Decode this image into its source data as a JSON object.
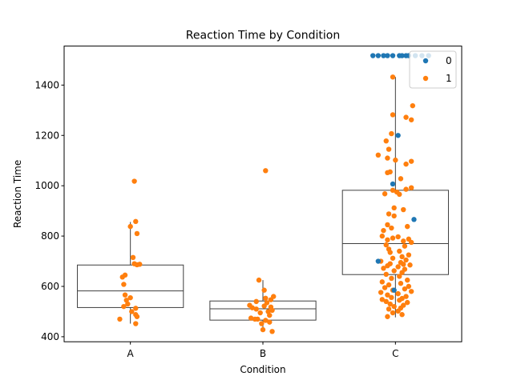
{
  "chart_data": {
    "type": "box_strip",
    "title": "Reaction Time by Condition",
    "xlabel": "Condition",
    "ylabel": "Reaction Time",
    "categories": [
      "A",
      "B",
      "C"
    ],
    "ylim": [
      380,
      1555
    ],
    "yticks": [
      400,
      600,
      800,
      1000,
      1200,
      1400
    ],
    "legend": {
      "placement": "top-right",
      "entries": [
        {
          "label": "0",
          "color": "#1f77b4"
        },
        {
          "label": "1",
          "color": "#ff7f0e"
        }
      ]
    },
    "box_style": {
      "edge_color": "#3f3f3f",
      "fill": "#ffffff"
    },
    "boxes": [
      {
        "category": "A",
        "q1": 516,
        "median": 582,
        "q3": 685,
        "whisker_low": 452,
        "whisker_high": 856
      },
      {
        "category": "B",
        "q1": 466,
        "median": 511,
        "q3": 542,
        "whisker_low": 421,
        "whisker_high": 625
      },
      {
        "category": "C",
        "q1": 647,
        "median": 770,
        "q3": 982,
        "whisker_low": 477,
        "whisker_high": 1432
      }
    ],
    "series": [
      {
        "name": "0",
        "color": "#1f77b4",
        "points": [
          [
            "C",
            -0.17,
            1517
          ],
          [
            "C",
            -0.13,
            1517
          ],
          [
            "C",
            0.05,
            1517
          ],
          [
            "C",
            0.25,
            1517
          ],
          [
            "C",
            -0.06,
            1517
          ],
          [
            "C",
            0.1,
            1517
          ],
          [
            "C",
            0.15,
            1517
          ],
          [
            "C",
            -0.09,
            1517
          ],
          [
            "C",
            0.03,
            1517
          ],
          [
            "C",
            0.2,
            1517
          ],
          [
            "C",
            -0.02,
            1517
          ],
          [
            "C",
            0.08,
            1517
          ],
          [
            "C",
            0.02,
            1200
          ],
          [
            "C",
            -0.02,
            1007
          ],
          [
            "C",
            0.14,
            866
          ],
          [
            "C",
            -0.13,
            700
          ],
          [
            "C",
            -0.01,
            585
          ]
        ]
      },
      {
        "name": "1",
        "color": "#ff7f0e",
        "points": [
          [
            "A",
            0.03,
            1018
          ],
          [
            "A",
            0.04,
            858
          ],
          [
            "A",
            0.0,
            838
          ],
          [
            "A",
            0.05,
            810
          ],
          [
            "A",
            0.02,
            715
          ],
          [
            "A",
            0.03,
            690
          ],
          [
            "A",
            0.07,
            688
          ],
          [
            "A",
            0.05,
            686
          ],
          [
            "A",
            -0.04,
            645
          ],
          [
            "A",
            -0.06,
            637
          ],
          [
            "A",
            -0.05,
            608
          ],
          [
            "A",
            -0.04,
            566
          ],
          [
            "A",
            0.0,
            555
          ],
          [
            "A",
            -0.03,
            545
          ],
          [
            "A",
            -0.02,
            530
          ],
          [
            "A",
            -0.05,
            520
          ],
          [
            "A",
            0.04,
            513
          ],
          [
            "A",
            0.01,
            500
          ],
          [
            "A",
            0.04,
            488
          ],
          [
            "A",
            0.05,
            480
          ],
          [
            "A",
            -0.08,
            470
          ],
          [
            "A",
            0.04,
            452
          ],
          [
            "B",
            0.02,
            1060
          ],
          [
            "B",
            -0.03,
            625
          ],
          [
            "B",
            0.01,
            585
          ],
          [
            "B",
            0.08,
            560
          ],
          [
            "B",
            0.02,
            553
          ],
          [
            "B",
            0.06,
            547
          ],
          [
            "B",
            -0.05,
            540
          ],
          [
            "B",
            0.03,
            535
          ],
          [
            "B",
            -0.1,
            525
          ],
          [
            "B",
            0.01,
            522
          ],
          [
            "B",
            0.06,
            518
          ],
          [
            "B",
            -0.08,
            515
          ],
          [
            "B",
            -0.05,
            510
          ],
          [
            "B",
            0.07,
            505
          ],
          [
            "B",
            0.04,
            500
          ],
          [
            "B",
            -0.02,
            495
          ],
          [
            "B",
            0.05,
            485
          ],
          [
            "B",
            -0.09,
            474
          ],
          [
            "B",
            -0.06,
            470
          ],
          [
            "B",
            0.02,
            465
          ],
          [
            "B",
            0.05,
            458
          ],
          [
            "B",
            -0.01,
            452
          ],
          [
            "B",
            0.0,
            428
          ],
          [
            "B",
            0.07,
            421
          ],
          [
            "B",
            -0.04,
            470
          ],
          [
            "C",
            -0.02,
            1432
          ],
          [
            "C",
            0.13,
            1318
          ],
          [
            "C",
            -0.02,
            1282
          ],
          [
            "C",
            0.08,
            1272
          ],
          [
            "C",
            0.12,
            1262
          ],
          [
            "C",
            -0.03,
            1207
          ],
          [
            "C",
            -0.07,
            1178
          ],
          [
            "C",
            -0.05,
            1145
          ],
          [
            "C",
            -0.13,
            1122
          ],
          [
            "C",
            -0.06,
            1110
          ],
          [
            "C",
            0.0,
            1102
          ],
          [
            "C",
            0.12,
            1097
          ],
          [
            "C",
            0.08,
            1086
          ],
          [
            "C",
            -0.04,
            1055
          ],
          [
            "C",
            -0.06,
            1052
          ],
          [
            "C",
            0.04,
            1028
          ],
          [
            "C",
            0.12,
            992
          ],
          [
            "C",
            0.08,
            986
          ],
          [
            "C",
            -0.02,
            982
          ],
          [
            "C",
            0.01,
            975
          ],
          [
            "C",
            -0.08,
            968
          ],
          [
            "C",
            0.03,
            966
          ],
          [
            "C",
            -0.01,
            912
          ],
          [
            "C",
            0.06,
            905
          ],
          [
            "C",
            -0.05,
            888
          ],
          [
            "C",
            -0.01,
            880
          ],
          [
            "C",
            -0.06,
            845
          ],
          [
            "C",
            0.09,
            838
          ],
          [
            "C",
            -0.03,
            832
          ],
          [
            "C",
            -0.09,
            822
          ],
          [
            "C",
            -0.1,
            800
          ],
          [
            "C",
            0.02,
            797
          ],
          [
            "C",
            -0.02,
            792
          ],
          [
            "C",
            0.1,
            788
          ],
          [
            "C",
            -0.06,
            785
          ],
          [
            "C",
            0.06,
            780
          ],
          [
            "C",
            0.12,
            775
          ],
          [
            "C",
            -0.07,
            765
          ],
          [
            "C",
            0.07,
            760
          ],
          [
            "C",
            -0.05,
            748
          ],
          [
            "C",
            0.03,
            740
          ],
          [
            "C",
            -0.04,
            735
          ],
          [
            "C",
            0.1,
            725
          ],
          [
            "C",
            0.05,
            718
          ],
          [
            "C",
            -0.02,
            712
          ],
          [
            "C",
            0.08,
            705
          ],
          [
            "C",
            -0.11,
            700
          ],
          [
            "C",
            0.04,
            695
          ],
          [
            "C",
            -0.04,
            690
          ],
          [
            "C",
            0.06,
            688
          ],
          [
            "C",
            0.11,
            685
          ],
          [
            "C",
            -0.06,
            682
          ],
          [
            "C",
            0.02,
            678
          ],
          [
            "C",
            -0.09,
            672
          ],
          [
            "C",
            0.07,
            668
          ],
          [
            "C",
            -0.01,
            662
          ],
          [
            "C",
            0.05,
            655
          ],
          [
            "C",
            -0.07,
            648
          ],
          [
            "C",
            0.03,
            640
          ],
          [
            "C",
            -0.03,
            632
          ],
          [
            "C",
            0.09,
            625
          ],
          [
            "C",
            -0.1,
            618
          ],
          [
            "C",
            0.04,
            612
          ],
          [
            "C",
            -0.05,
            606
          ],
          [
            "C",
            0.1,
            600
          ],
          [
            "C",
            -0.08,
            595
          ],
          [
            "C",
            0.07,
            590
          ],
          [
            "C",
            -0.02,
            585
          ],
          [
            "C",
            0.12,
            580
          ],
          [
            "C",
            -0.11,
            576
          ],
          [
            "C",
            0.02,
            571
          ],
          [
            "C",
            -0.06,
            566
          ],
          [
            "C",
            0.08,
            560
          ],
          [
            "C",
            -0.03,
            556
          ],
          [
            "C",
            0.05,
            552
          ],
          [
            "C",
            -0.1,
            548
          ],
          [
            "C",
            0.03,
            545
          ],
          [
            "C",
            -0.07,
            540
          ],
          [
            "C",
            0.09,
            536
          ],
          [
            "C",
            -0.04,
            530
          ],
          [
            "C",
            0.06,
            525
          ],
          [
            "C",
            -0.01,
            520
          ],
          [
            "C",
            0.04,
            514
          ],
          [
            "C",
            -0.05,
            510
          ],
          [
            "C",
            0.02,
            502
          ],
          [
            "C",
            -0.02,
            495
          ],
          [
            "C",
            0.05,
            488
          ],
          [
            "C",
            -0.06,
            480
          ]
        ]
      }
    ]
  }
}
